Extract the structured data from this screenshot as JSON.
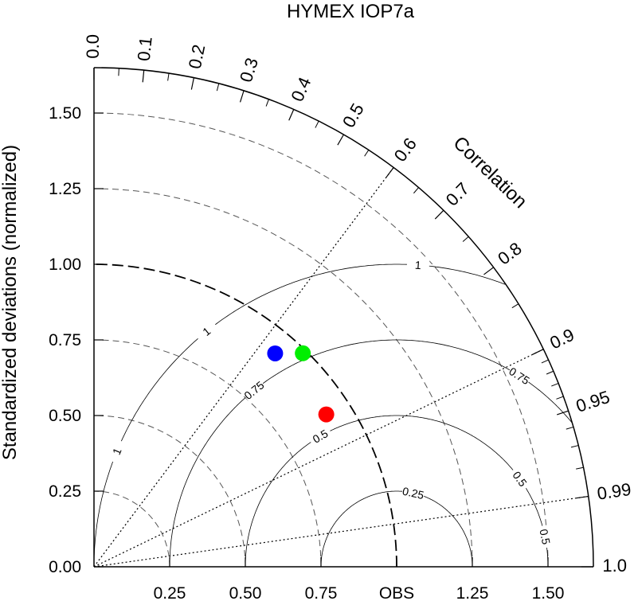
{
  "chart_data": {
    "type": "scatter",
    "title": "HYMEX IOP7a",
    "ylabel": "Standardized deviations (normalized)",
    "correlation_label": "Correlation",
    "std_range": [
      0,
      1.65
    ],
    "std_ticks": [
      {
        "value": 0.0,
        "label": "0.00"
      },
      {
        "value": 0.25,
        "label": "0.25"
      },
      {
        "value": 0.5,
        "label": "0.50"
      },
      {
        "value": 0.75,
        "label": "0.75"
      },
      {
        "value": 1.0,
        "label": "1.00"
      },
      {
        "value": 1.25,
        "label": "1.25"
      },
      {
        "value": 1.5,
        "label": "1.50"
      }
    ],
    "x_ticks": [
      {
        "value": 0.25,
        "label": "0.25"
      },
      {
        "value": 0.5,
        "label": "0.50"
      },
      {
        "value": 0.75,
        "label": "0.75"
      },
      {
        "value": 1.0,
        "label": "OBS"
      },
      {
        "value": 1.25,
        "label": "1.25"
      },
      {
        "value": 1.5,
        "label": "1.50"
      }
    ],
    "correlation_ticks": [
      {
        "value": 0.0,
        "label": "0.0"
      },
      {
        "value": 0.1,
        "label": "0.1"
      },
      {
        "value": 0.2,
        "label": "0.2"
      },
      {
        "value": 0.3,
        "label": "0.3"
      },
      {
        "value": 0.4,
        "label": "0.4"
      },
      {
        "value": 0.5,
        "label": "0.5"
      },
      {
        "value": 0.6,
        "label": "0.6"
      },
      {
        "value": 0.7,
        "label": "0.7"
      },
      {
        "value": 0.8,
        "label": "0.8"
      },
      {
        "value": 0.9,
        "label": "0.9"
      },
      {
        "value": 0.95,
        "label": "0.95"
      },
      {
        "value": 0.99,
        "label": "0.99"
      },
      {
        "value": 1.0,
        "label": "1.0"
      }
    ],
    "correlation_minor_ticks": [
      0.05,
      0.15,
      0.25,
      0.35,
      0.45,
      0.55,
      0.65,
      0.75,
      0.85,
      0.91,
      0.92,
      0.93,
      0.94,
      0.96,
      0.97,
      0.98
    ],
    "correlation_reference_lines": [
      0.6,
      0.9,
      0.99
    ],
    "std_reference_arcs": [
      0.25,
      0.5,
      0.75,
      1.25,
      1.5
    ],
    "rmsd_contours": [
      {
        "value": 0.25,
        "label": "0.25"
      },
      {
        "value": 0.5,
        "label": "0.5"
      },
      {
        "value": 0.75,
        "label": "0.75"
      },
      {
        "value": 1.0,
        "label": "1"
      }
    ],
    "points": [
      {
        "std": 0.925,
        "corr": 0.647,
        "color": "#0000ff"
      },
      {
        "std": 0.987,
        "corr": 0.699,
        "color": "#00ee00"
      },
      {
        "std": 0.918,
        "corr": 0.836,
        "color": "#ff0000"
      }
    ],
    "grid": true
  }
}
